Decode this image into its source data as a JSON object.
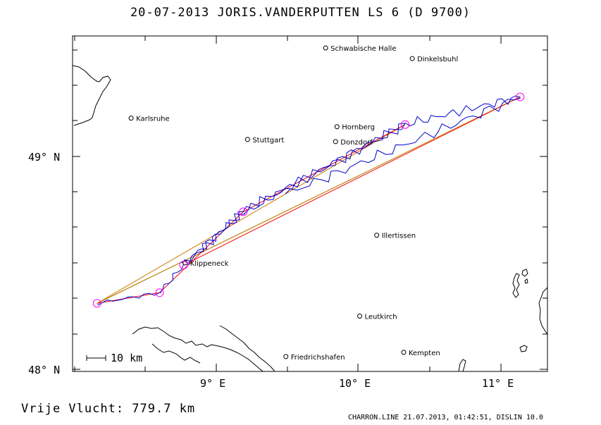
{
  "header": {
    "title": "20-07-2013   JORIS.VANDERPUTTEN   LS 6 (D 9700)"
  },
  "footer": {
    "distance_text": "Vrije Vlucht:  779.7 km",
    "credit": "CHARRON.LINE 21.07.2013, 01:42:51, DISLIN 10.0"
  },
  "axes": {
    "x_ticks": [
      "9° E",
      "10° E",
      "11° E"
    ],
    "y_ticks": [
      "49° N",
      "48° N"
    ]
  },
  "scale_bar": {
    "label": "10 km"
  },
  "cities": [
    {
      "name": "Schwabische Halle",
      "lon": 9.77,
      "lat": 49.51
    },
    {
      "name": "Dinkelsbuhl",
      "lon": 10.38,
      "lat": 49.46
    },
    {
      "name": "Karlsruhe",
      "lon": 8.4,
      "lat": 49.18
    },
    {
      "name": "Hornberg",
      "lon": 9.85,
      "lat": 49.14
    },
    {
      "name": "Stuttgart",
      "lon": 9.22,
      "lat": 49.08
    },
    {
      "name": "Donzdorf",
      "lon": 9.84,
      "lat": 49.07
    },
    {
      "name": "Illertissen",
      "lon": 10.13,
      "lat": 48.63
    },
    {
      "name": "Klippeneck",
      "lon": 8.78,
      "lat": 48.5
    },
    {
      "name": "Leutkirch",
      "lon": 10.01,
      "lat": 48.25
    },
    {
      "name": "Friedrichshafen",
      "lon": 9.49,
      "lat": 48.06
    },
    {
      "name": "Kempten",
      "lon": 10.32,
      "lat": 48.08
    }
  ],
  "turnpoints": [
    {
      "lon": 8.16,
      "lat": 48.31
    },
    {
      "lon": 8.6,
      "lat": 48.36
    },
    {
      "lon": 8.77,
      "lat": 48.49
    },
    {
      "lon": 9.19,
      "lat": 48.74
    },
    {
      "lon": 10.33,
      "lat": 49.15
    },
    {
      "lon": 11.14,
      "lat": 49.28
    }
  ],
  "colors": {
    "track": "#0000cc",
    "route_red": "#ff0000",
    "route_green": "#33cc33",
    "route_orange": "#cc7700",
    "turnpoint": "#ff00ff",
    "coast": "#000000"
  }
}
